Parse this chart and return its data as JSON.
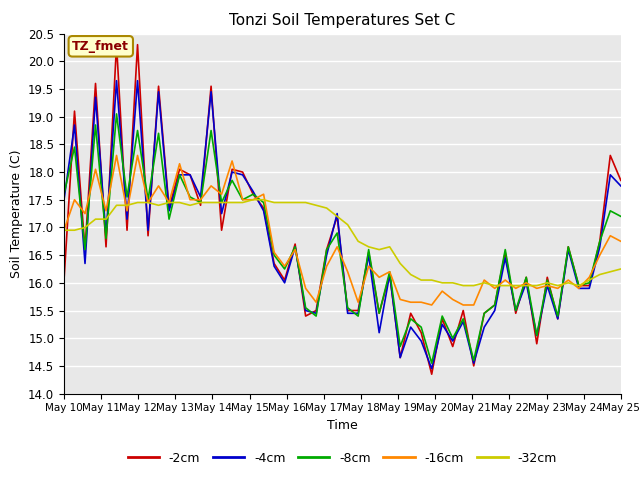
{
  "title": "Tonzi Soil Temperatures Set C",
  "xlabel": "Time",
  "ylabel": "Soil Temperature (C)",
  "ylim": [
    14.0,
    20.5
  ],
  "annotation": "TZ_fmet",
  "legend_labels": [
    "-2cm",
    "-4cm",
    "-8cm",
    "-16cm",
    "-32cm"
  ],
  "line_colors": [
    "#cc0000",
    "#0000cc",
    "#00aa00",
    "#ff8800",
    "#cccc00"
  ],
  "plot_bg_color": "#e8e8e8",
  "x_tick_labels": [
    "May 10",
    "May 11",
    "May 12",
    "May 13",
    "May 14",
    "May 15",
    "May 16",
    "May 17",
    "May 18",
    "May 19",
    "May 20",
    "May 21",
    "May 22",
    "May 23",
    "May 24",
    "May 25"
  ],
  "series_2cm": [
    16.05,
    19.1,
    16.6,
    19.6,
    16.65,
    20.3,
    16.95,
    20.3,
    16.85,
    19.55,
    17.35,
    18.05,
    17.95,
    17.4,
    19.55,
    16.95,
    18.05,
    18.0,
    17.6,
    17.35,
    16.35,
    16.05,
    16.7,
    15.4,
    15.5,
    16.6,
    17.2,
    15.5,
    15.5,
    16.55,
    15.45,
    16.15,
    14.65,
    15.45,
    15.1,
    14.35,
    15.35,
    14.85,
    15.5,
    14.5,
    15.45,
    15.6,
    16.55,
    15.45,
    16.1,
    14.9,
    16.1,
    15.35,
    16.65,
    15.95,
    15.95,
    16.75,
    18.3,
    17.85
  ],
  "series_4cm": [
    17.5,
    18.85,
    16.35,
    19.35,
    16.85,
    19.65,
    17.15,
    19.65,
    16.95,
    19.45,
    17.3,
    17.95,
    17.95,
    17.55,
    19.45,
    17.25,
    18.0,
    17.95,
    17.65,
    17.3,
    16.3,
    16.0,
    16.65,
    15.5,
    15.45,
    16.5,
    17.25,
    15.45,
    15.45,
    16.5,
    15.1,
    16.15,
    14.65,
    15.2,
    14.95,
    14.45,
    15.25,
    14.95,
    15.3,
    14.55,
    15.2,
    15.5,
    16.45,
    15.5,
    16.0,
    15.05,
    15.95,
    15.35,
    16.6,
    15.9,
    15.9,
    16.65,
    17.95,
    17.75
  ],
  "series_8cm": [
    17.6,
    18.45,
    16.6,
    18.85,
    16.8,
    19.05,
    17.55,
    18.75,
    17.5,
    18.7,
    17.15,
    17.95,
    17.55,
    17.45,
    18.75,
    17.45,
    17.85,
    17.5,
    17.6,
    17.45,
    16.5,
    16.25,
    16.65,
    15.55,
    15.4,
    16.6,
    16.9,
    15.55,
    15.4,
    16.6,
    15.45,
    16.2,
    14.85,
    15.35,
    15.2,
    14.55,
    15.4,
    15.0,
    15.35,
    14.6,
    15.45,
    15.6,
    16.6,
    15.5,
    16.1,
    15.05,
    16.05,
    15.4,
    16.65,
    15.95,
    16.0,
    16.75,
    17.3,
    17.2
  ],
  "series_16cm": [
    16.95,
    17.5,
    17.25,
    18.05,
    17.3,
    18.3,
    17.3,
    18.3,
    17.45,
    17.75,
    17.45,
    18.15,
    17.5,
    17.5,
    17.75,
    17.6,
    18.2,
    17.5,
    17.5,
    17.6,
    16.55,
    16.3,
    16.6,
    15.9,
    15.65,
    16.3,
    16.65,
    16.2,
    15.65,
    16.3,
    16.1,
    16.2,
    15.7,
    15.65,
    15.65,
    15.6,
    15.85,
    15.7,
    15.6,
    15.6,
    16.05,
    15.9,
    16.05,
    15.9,
    16.0,
    15.9,
    15.95,
    15.9,
    16.05,
    15.9,
    16.1,
    16.5,
    16.85,
    16.75
  ],
  "series_32cm": [
    16.95,
    16.95,
    17.0,
    17.15,
    17.15,
    17.4,
    17.4,
    17.45,
    17.45,
    17.4,
    17.45,
    17.45,
    17.4,
    17.45,
    17.45,
    17.45,
    17.45,
    17.45,
    17.5,
    17.5,
    17.45,
    17.45,
    17.45,
    17.45,
    17.4,
    17.35,
    17.2,
    17.05,
    16.75,
    16.65,
    16.6,
    16.65,
    16.35,
    16.15,
    16.05,
    16.05,
    16.0,
    16.0,
    15.95,
    15.95,
    16.0,
    15.95,
    15.95,
    15.95,
    15.95,
    15.95,
    16.0,
    15.95,
    16.0,
    15.95,
    16.05,
    16.15,
    16.2,
    16.25
  ]
}
